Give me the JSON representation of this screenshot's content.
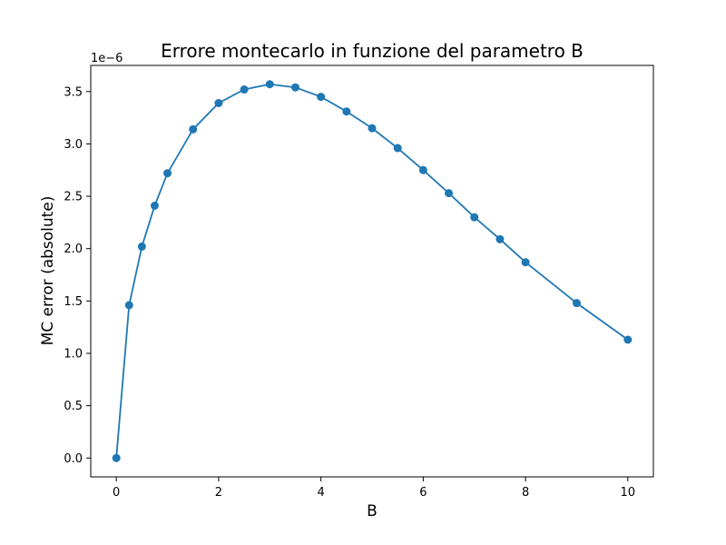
{
  "chart_data": {
    "type": "line",
    "title": "Errore montecarlo in funzione del parametro B",
    "xlabel": "B",
    "ylabel": "MC error (absolute)",
    "y_offset_label": "1e−6",
    "xlim": [
      -0.5,
      10.5
    ],
    "ylim": [
      -0.18,
      3.75
    ],
    "x_ticks": [
      0,
      2,
      4,
      6,
      8,
      10
    ],
    "x_tick_labels": [
      "0",
      "2",
      "4",
      "6",
      "8",
      "10"
    ],
    "y_ticks": [
      0.0,
      0.5,
      1.0,
      1.5,
      2.0,
      2.5,
      3.0,
      3.5
    ],
    "y_tick_labels": [
      "0.0",
      "0.5",
      "1.0",
      "1.5",
      "2.0",
      "2.5",
      "3.0",
      "3.5"
    ],
    "grid": false,
    "marker": "circle",
    "color": "#1f77b4",
    "series": [
      {
        "x": [
          0,
          0.25,
          0.5,
          0.75,
          1.0,
          1.5,
          2.0,
          2.5,
          3.0,
          3.5,
          4.0,
          4.5,
          5.0,
          5.5,
          6.0,
          6.5,
          7.0,
          7.5,
          8.0,
          9.0,
          10.0
        ],
        "y": [
          0.0,
          1.46,
          2.02,
          2.41,
          2.72,
          3.14,
          3.39,
          3.52,
          3.57,
          3.54,
          3.45,
          3.31,
          3.15,
          2.96,
          2.75,
          2.53,
          2.3,
          2.09,
          1.87,
          1.48,
          1.13
        ]
      }
    ]
  }
}
